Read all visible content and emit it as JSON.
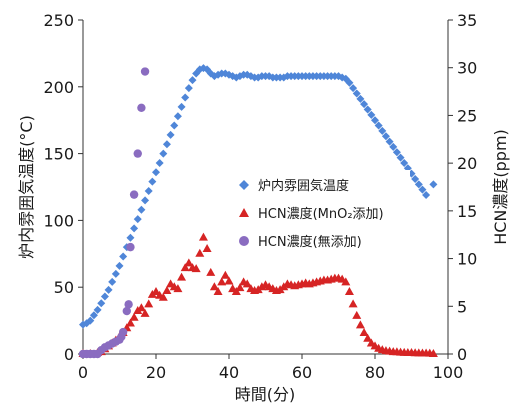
{
  "chart_data": {
    "type": "scatter",
    "title": "",
    "xlabel": "時間(分)",
    "ylabel_left": "炉内雰囲気温度(°C)",
    "ylabel_right": "HCN濃度(ppm)",
    "xlim": [
      0,
      100
    ],
    "ylim_left": [
      0,
      250
    ],
    "ylim_right": [
      0,
      35
    ],
    "x_ticks": [
      0,
      20,
      40,
      60,
      80,
      100
    ],
    "y_left_ticks": [
      0,
      50,
      100,
      150,
      200,
      250
    ],
    "y_right_ticks": [
      0,
      5,
      10,
      15,
      20,
      25,
      30,
      35
    ],
    "grid": false,
    "legend_position": "center-right",
    "series": [
      {
        "name": "炉内雰囲気温度",
        "axis": "left",
        "marker": "diamond",
        "color": "#4f86d8",
        "x": [
          0,
          1,
          2,
          3,
          4,
          5,
          6,
          7,
          8,
          9,
          10,
          11,
          12,
          13,
          14,
          15,
          16,
          17,
          18,
          19,
          20,
          21,
          22,
          23,
          24,
          25,
          26,
          27,
          28,
          29,
          30,
          31,
          32,
          33,
          34,
          35,
          36,
          37,
          38,
          39,
          40,
          41,
          42,
          43,
          44,
          45,
          46,
          47,
          48,
          49,
          50,
          51,
          52,
          53,
          54,
          55,
          56,
          57,
          58,
          59,
          60,
          61,
          62,
          63,
          64,
          65,
          66,
          67,
          68,
          69,
          70,
          71,
          72,
          73,
          74,
          75,
          76,
          77,
          78,
          79,
          80,
          81,
          82,
          83,
          84,
          85,
          86,
          87,
          88,
          89,
          90,
          91,
          92,
          93,
          94,
          96
        ],
        "y": [
          22,
          23,
          25,
          29,
          33,
          38,
          43,
          48,
          54,
          60,
          66,
          73,
          80,
          87,
          94,
          101,
          108,
          115,
          122,
          129,
          136,
          143,
          150,
          157,
          164,
          171,
          178,
          185,
          192,
          199,
          205,
          210,
          213,
          214,
          213,
          210,
          208,
          209,
          210,
          210,
          209,
          208,
          207,
          208,
          209,
          209,
          208,
          207,
          207,
          208,
          208,
          208,
          207,
          207,
          207,
          207,
          208,
          208,
          208,
          208,
          208,
          208,
          208,
          208,
          208,
          208,
          208,
          208,
          208,
          208,
          208,
          207,
          206,
          203,
          199,
          195,
          191,
          187,
          183,
          179,
          175,
          171,
          167,
          163,
          159,
          155,
          151,
          147,
          143,
          139,
          135,
          131,
          127,
          123,
          119,
          127
        ]
      },
      {
        "name": "HCN濃度(MnO₂添加)",
        "axis": "right",
        "marker": "triangle",
        "color": "#d62424",
        "x": [
          0,
          2,
          4,
          5,
          6,
          7,
          8,
          9,
          10,
          11,
          12,
          13,
          14,
          15,
          16,
          17,
          18,
          19,
          20,
          21,
          22,
          23,
          24,
          25,
          26,
          27,
          28,
          29,
          30,
          31,
          32,
          33,
          34,
          35,
          36,
          37,
          38,
          39,
          40,
          41,
          42,
          43,
          44,
          45,
          46,
          47,
          48,
          49,
          50,
          51,
          52,
          53,
          54,
          55,
          56,
          57,
          58,
          59,
          60,
          61,
          62,
          63,
          64,
          65,
          66,
          67,
          68,
          69,
          70,
          71,
          72,
          73,
          74,
          75,
          76,
          77,
          78,
          79,
          80,
          81,
          82,
          83,
          84,
          85,
          86,
          87,
          88,
          89,
          90,
          91,
          92,
          93,
          94,
          95,
          96
        ],
        "y": [
          0,
          0,
          0.1,
          0.2,
          0.5,
          0.8,
          1.1,
          1.4,
          1.8,
          2.2,
          2.7,
          3.2,
          3.8,
          4.5,
          4.8,
          4.2,
          5.2,
          6.2,
          6.5,
          6.1,
          5.9,
          6.6,
          7.3,
          7.0,
          6.8,
          8.0,
          9.0,
          9.5,
          9.0,
          8.9,
          10.5,
          12.2,
          11.0,
          8.5,
          7.0,
          6.5,
          7.5,
          8.2,
          7.6,
          6.8,
          6.5,
          6.9,
          7.5,
          7.3,
          6.8,
          6.6,
          6.7,
          7.0,
          7.2,
          7.0,
          6.8,
          6.6,
          6.7,
          7.0,
          7.3,
          7.2,
          7.1,
          7.2,
          7.3,
          7.4,
          7.3,
          7.4,
          7.5,
          7.6,
          7.7,
          7.7,
          7.8,
          7.9,
          7.9,
          7.8,
          7.5,
          6.5,
          5.2,
          4.0,
          3.0,
          2.2,
          1.6,
          1.1,
          0.8,
          0.55,
          0.4,
          0.3,
          0.25,
          0.2,
          0.18,
          0.15,
          0.12,
          0.1,
          0.1,
          0.08,
          0.07,
          0.05,
          0.05,
          0.04,
          0
        ]
      },
      {
        "name": "HCN濃度(無添加)",
        "axis": "right",
        "marker": "circle",
        "color": "#8a6cc0",
        "x": [
          0,
          1,
          2,
          3,
          4,
          5,
          6,
          7,
          8,
          9,
          10,
          10.5,
          11,
          12,
          12.5,
          13,
          14,
          15,
          16,
          17
        ],
        "y": [
          0,
          0,
          0,
          0,
          0,
          0.4,
          0.7,
          0.9,
          1.1,
          1.3,
          1.5,
          1.8,
          2.3,
          4.5,
          5.2,
          11.2,
          16.7,
          21.0,
          25.8,
          29.6
        ]
      }
    ]
  },
  "colors": {
    "axis": "#333333",
    "temp": "#4f86d8",
    "hcn_mno2": "#d62424",
    "hcn_none": "#8a6cc0"
  }
}
